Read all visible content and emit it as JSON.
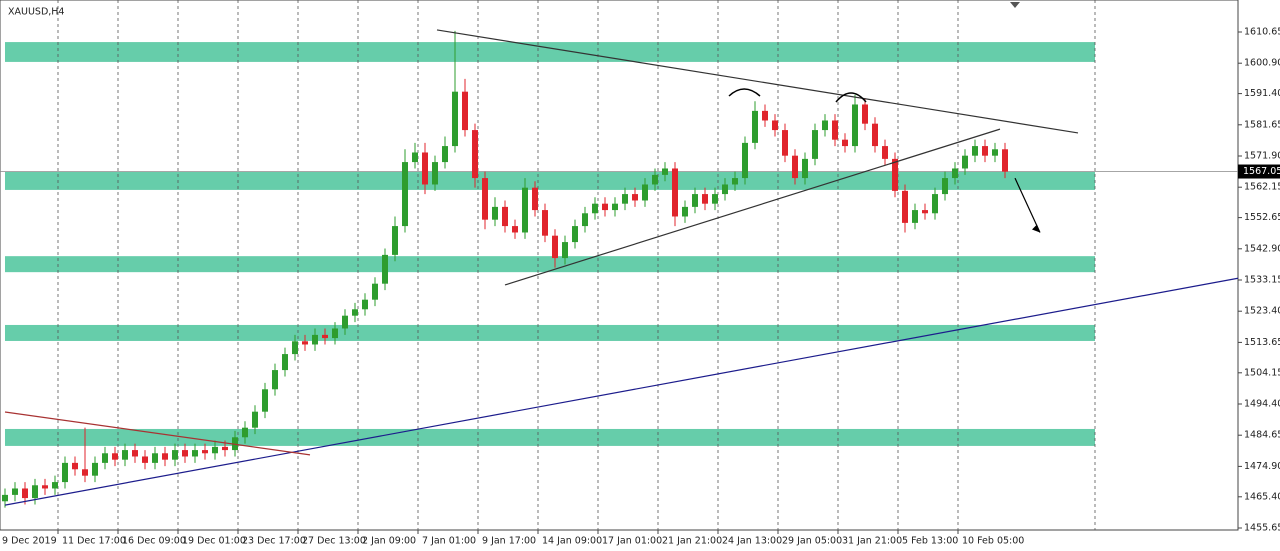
{
  "chart_data": {
    "type": "candlestick",
    "title": "XAUUSD,H4",
    "open": [
      1464,
      1466,
      1468,
      1465,
      1469,
      1468,
      1470,
      1476,
      1474,
      1472,
      1476,
      1479,
      1477,
      1480,
      1478,
      1476,
      1479,
      1477,
      1480,
      1478,
      1480,
      1479,
      1481,
      1480,
      1484,
      1487,
      1492,
      1499,
      1505,
      1510,
      1514,
      1513,
      1516,
      1515,
      1518,
      1522,
      1524,
      1527,
      1532,
      1541,
      1550,
      1570,
      1573,
      1563,
      1570,
      1575,
      1592,
      1580,
      1565,
      1552,
      1556,
      1550,
      1548,
      1562,
      1555,
      1547,
      1540,
      1545,
      1550,
      1554,
      1557,
      1555,
      1557,
      1560,
      1558,
      1563,
      1566,
      1568,
      1553,
      1556,
      1560,
      1557,
      1560,
      1563,
      1565,
      1576,
      1586,
      1583,
      1580,
      1572,
      1565,
      1571,
      1580,
      1583,
      1577,
      1575,
      1588,
      1582,
      1575,
      1571,
      1561,
      1551,
      1555,
      1554,
      1560,
      1565,
      1568,
      1572,
      1575,
      1572,
      1574
    ],
    "high": [
      1468,
      1470,
      1470,
      1471,
      1471,
      1472,
      1478,
      1478,
      1487,
      1478,
      1481,
      1481,
      1482,
      1482,
      1480,
      1481,
      1481,
      1482,
      1482,
      1482,
      1482,
      1483,
      1483,
      1486,
      1489,
      1494,
      1501,
      1507,
      1512,
      1516,
      1516,
      1518,
      1518,
      1520,
      1524,
      1526,
      1529,
      1534,
      1543,
      1553,
      1574,
      1576,
      1576,
      1572,
      1578,
      1611,
      1596,
      1582,
      1567,
      1559,
      1558,
      1552,
      1565,
      1564,
      1557,
      1549,
      1547,
      1552,
      1556,
      1559,
      1559,
      1559,
      1562,
      1562,
      1565,
      1568,
      1570,
      1570,
      1558,
      1562,
      1562,
      1562,
      1565,
      1567,
      1578,
      1589,
      1588,
      1585,
      1582,
      1574,
      1573,
      1582,
      1585,
      1585,
      1579,
      1591,
      1590,
      1584,
      1577,
      1573,
      1563,
      1557,
      1557,
      1562,
      1567,
      1570,
      1574,
      1577,
      1577,
      1576,
      1576
    ],
    "low": [
      1462,
      1464,
      1463,
      1463,
      1466,
      1466,
      1468,
      1472,
      1470,
      1470,
      1474,
      1475,
      1475,
      1476,
      1474,
      1474,
      1475,
      1475,
      1476,
      1476,
      1477,
      1477,
      1478,
      1478,
      1482,
      1485,
      1490,
      1497,
      1503,
      1508,
      1511,
      1511,
      1513,
      1513,
      1516,
      1520,
      1522,
      1525,
      1530,
      1539,
      1548,
      1568,
      1560,
      1561,
      1568,
      1573,
      1578,
      1562,
      1549,
      1550,
      1548,
      1546,
      1546,
      1553,
      1545,
      1537,
      1538,
      1543,
      1548,
      1552,
      1553,
      1553,
      1555,
      1556,
      1556,
      1561,
      1564,
      1550,
      1551,
      1554,
      1555,
      1555,
      1558,
      1561,
      1563,
      1574,
      1581,
      1578,
      1570,
      1563,
      1563,
      1569,
      1578,
      1575,
      1573,
      1573,
      1580,
      1573,
      1569,
      1559,
      1548,
      1549,
      1552,
      1552,
      1558,
      1563,
      1566,
      1570,
      1570,
      1570,
      1565
    ],
    "close": [
      1466,
      1468,
      1465,
      1469,
      1468,
      1470,
      1476,
      1474,
      1472,
      1476,
      1479,
      1477,
      1480,
      1478,
      1476,
      1479,
      1477,
      1480,
      1478,
      1480,
      1479,
      1481,
      1480,
      1484,
      1487,
      1492,
      1499,
      1505,
      1510,
      1514,
      1513,
      1516,
      1515,
      1518,
      1522,
      1524,
      1527,
      1532,
      1541,
      1550,
      1570,
      1573,
      1563,
      1570,
      1575,
      1592,
      1580,
      1565,
      1552,
      1556,
      1550,
      1548,
      1562,
      1555,
      1547,
      1540,
      1545,
      1550,
      1554,
      1557,
      1555,
      1557,
      1560,
      1558,
      1563,
      1566,
      1568,
      1553,
      1556,
      1560,
      1557,
      1560,
      1563,
      1565,
      1576,
      1586,
      1583,
      1580,
      1572,
      1565,
      1571,
      1580,
      1583,
      1577,
      1575,
      1588,
      1582,
      1575,
      1571,
      1561,
      1551,
      1555,
      1554,
      1560,
      1565,
      1568,
      1572,
      1575,
      1572,
      1574,
      1567
    ],
    "up_color": "#2e9d2e",
    "down_color": "#e0242c",
    "xlim": [
      -0.5,
      123.3
    ],
    "xticks": [
      {
        "value": 0,
        "label": "9 Dec 2019"
      },
      {
        "value": 6,
        "label": "11 Dec 17:00"
      },
      {
        "value": 12,
        "label": "16 Dec 09:00"
      },
      {
        "value": 18,
        "label": "19 Dec 01:00"
      },
      {
        "value": 24,
        "label": "23 Dec 17:00"
      },
      {
        "value": 30,
        "label": "27 Dec 13:00"
      },
      {
        "value": 36,
        "label": "2 Jan 09:00"
      },
      {
        "value": 42,
        "label": "7 Jan 01:00"
      },
      {
        "value": 48,
        "label": "9 Jan 17:00"
      },
      {
        "value": 54,
        "label": "14 Jan 09:00"
      },
      {
        "value": 60,
        "label": "17 Jan 01:00"
      },
      {
        "value": 66,
        "label": "21 Jan 21:00"
      },
      {
        "value": 72,
        "label": "24 Jan 13:00"
      },
      {
        "value": 78,
        "label": "29 Jan 05:00"
      },
      {
        "value": 84,
        "label": "31 Jan 21:00"
      },
      {
        "value": 90,
        "label": "5 Feb 13:00"
      },
      {
        "value": 96,
        "label": "10 Feb 05:00"
      }
    ],
    "ylim": [
      1455.65,
      1620.65
    ],
    "yticks": [
      1610.65,
      {
        "value": 1600.9,
        "label": "1600.90"
      },
      {
        "value": 1591.4,
        "label": "1591.40"
      },
      1581.65,
      {
        "value": 1571.9,
        "label": "1571.90"
      },
      1562.15,
      1552.65,
      {
        "value": 1542.9,
        "label": "1542.90"
      },
      1533.15,
      {
        "value": 1523.4,
        "label": "1523.40"
      },
      1513.65,
      1504.15,
      {
        "value": 1494.4,
        "label": "1494.40"
      },
      1484.65,
      {
        "value": 1474.9,
        "label": "1474.90"
      },
      {
        "value": 1465.4,
        "label": "1465.40"
      },
      1455.65
    ],
    "grid": true,
    "current_price": 1567.05,
    "zones": [
      [
        1601.3,
        1607.5
      ],
      [
        1561.3,
        1566.9
      ],
      [
        1535.6,
        1540.6
      ],
      [
        1514.1,
        1519.1
      ],
      [
        1481.3,
        1486.6
      ]
    ],
    "zone_color": "#66cdaa",
    "lines": [
      {
        "x": [
          43.2,
          107.3
        ],
        "y": [
          1611.3,
          1579.1
        ],
        "color": "#333333"
      },
      {
        "x": [
          50,
          99.5
        ],
        "y": [
          1531.6,
          1580.3
        ],
        "color": "#333333"
      },
      {
        "x": [
          0,
          123.3
        ],
        "y": [
          1462.8,
          1533.7
        ],
        "color": "#1c1c8c"
      },
      {
        "x": [
          0,
          30.5
        ],
        "y": [
          1491.9,
          1478.5
        ],
        "color": "#a83232"
      },
      {
        "x": [
          101,
          103.5
        ],
        "y": [
          1565,
          1548
        ],
        "color": "#000000"
      }
    ]
  }
}
